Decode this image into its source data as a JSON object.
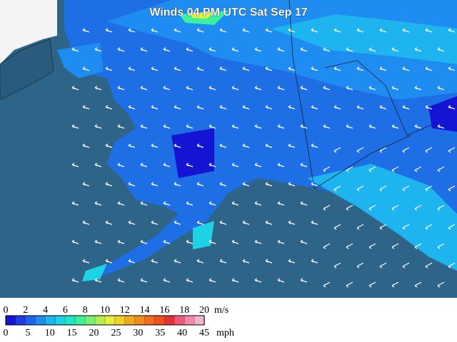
{
  "title": "Winds 04 PM UTC Sat Sep 17",
  "legend": {
    "colors": [
      "#1414d2",
      "#1e3ce6",
      "#1e64f0",
      "#1e8cf0",
      "#1eb4f0",
      "#1ed2e6",
      "#1ee6c8",
      "#3cf0a0",
      "#78f078",
      "#b4f050",
      "#e6f03c",
      "#f0d228",
      "#f0aa1e",
      "#f08c1e",
      "#f06e1e",
      "#f0501e",
      "#e63232",
      "#f05a78",
      "#f08caa",
      "#f0b4d2"
    ],
    "ms_ticks": [
      0,
      2,
      4,
      6,
      8,
      10,
      12,
      14,
      16,
      18,
      20
    ],
    "ms_unit": "m/s",
    "mph_ticks": [
      0,
      5,
      10,
      15,
      20,
      25,
      30,
      35,
      40,
      45
    ],
    "mph_unit": "mph"
  }
}
